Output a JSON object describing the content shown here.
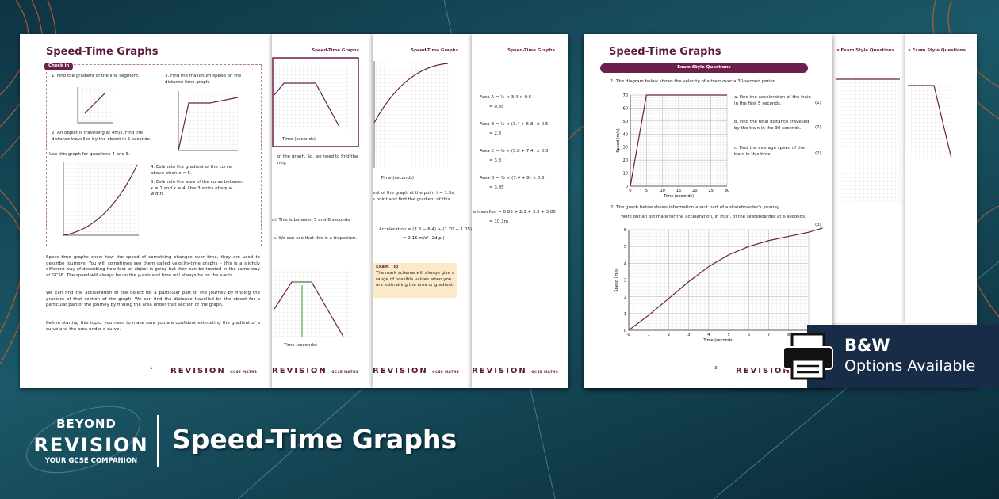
{
  "banner": {
    "title": "Speed-Time Graphs",
    "logo": {
      "top": "BEYOND",
      "main": "REVISION",
      "tagline": "YOUR GCSE COMPANION"
    },
    "badge": {
      "title": "B&W",
      "subtitle": "Options Available"
    }
  },
  "left_spread": {
    "title": "Speed-Time Graphs",
    "check_in": "Check in",
    "questions": [
      "1.  Find the gradient of the line segment.",
      "2.  An object is travelling at 4m/s. Find the distance travelled by the object in 5 seconds.",
      "3.  Find the maximum speed on the distance time graph.",
      "Use this graph for questions 4 and 5.",
      "4.  Estimate the gradient of the curve above when x = 5.",
      "5.  Estimate the area of the curve between x = 1 and x = 4. Use 3 strips of equal width."
    ],
    "paragraphs": [
      "Speed-time graphs show how the speed of something changes over time, they are used to describe journeys. You will sometimes see them called velocity-time graphs – this is a slightly different way of describing how fast an object is going but they can be treated in the same way at GCSE. The speed will always be on the y-axis and time will always be on the x-axis.",
      "We can find the acceleration of the object for a particular part of the journey by finding the gradient of that section of the graph. We can find the distance travelled by the object for a particular part of the journey by finding the area under that section of the graph.",
      "Before starting this topic, you need to make sure you are confident estimating the gradient of a curve and the area under a curve."
    ],
    "page_number": "1",
    "brand": "REVISION",
    "brand_sub": "GCSE MATHS",
    "axis_label": "Time (seconds)",
    "page2_lines": [
      "of the graph. So, we need to find the",
      "ney.",
      "ol. This is between 5 and 8 seconds.",
      "s. We can see that this is a trapezium."
    ],
    "page3_lines": [
      "ent of the graph at the point t = 1.5s.",
      "s point and find the gradient of this",
      "Acceleration = (7.8 − 6.4) ÷ (1.70 − 1.05)",
      "= 2.15 m/s² (2d.p.)"
    ],
    "exam_tip": {
      "title": "Exam Tip",
      "text": "The mark scheme will always give a range of possible values when you are estimating the area or gradient."
    },
    "page4_lines": [
      "Area A = ½ × 3.4 × 0.5",
      "= 0.85",
      "Area B = ½ × (3.4 + 5.8) × 0.5",
      "= 2.3",
      "Area C = ½ × (5.8 + 7.4) × 0.5",
      "= 3.3",
      "Area D = ½ × (7.4 + 8) × 0.5",
      "= 3.85",
      "e travelled = 0.85 + 2.3 + 3.3 + 3.85",
      "= 10.3m"
    ]
  },
  "right_spread": {
    "title": "Speed-Time Graphs",
    "section": "Exam Style Questions",
    "back_header": "s Exam Style Questions",
    "q1": "1.  The diagram below shows the velocity of a train over a 30-second period.",
    "parts": [
      {
        "text": "a.  Find the acceleration of the train in the first 5 seconds.",
        "marks": "(1)"
      },
      {
        "text": "b.  Find the total distance travelled by the train in the 30 seconds.",
        "marks": "(2)"
      },
      {
        "text": "c.  Find the average speed of the train in this time.",
        "marks": "(2)"
      }
    ],
    "q2": "2.  The graph below shows information about part of a skateboarder's journey.",
    "q2_task": "Work out an estimate for the acceleration, in m/s², of the skateboarder at 6 seconds.",
    "q2_marks": "(3)",
    "page_number": "3",
    "brand": "REVISION",
    "graph1": {
      "x_label": "Time (seconds)",
      "y_label": "Speed (m/s)",
      "xticks": [
        0,
        5,
        10,
        15,
        20,
        25,
        30
      ],
      "yticks": [
        0,
        10,
        20,
        30,
        40,
        50,
        60,
        70
      ],
      "x": [
        0,
        5,
        30
      ],
      "y": [
        0,
        70,
        70
      ]
    },
    "graph2": {
      "x_label": "Time (seconds)",
      "y_label": "Speed (m/s)",
      "xticks": [
        0,
        1,
        2,
        3,
        4,
        5,
        6,
        7,
        8,
        9
      ],
      "yticks": [
        0,
        1,
        2,
        3,
        4,
        5,
        6
      ],
      "x": [
        0,
        1,
        2,
        3,
        4,
        5,
        6,
        7,
        8,
        9,
        9.7
      ],
      "y": [
        0,
        0.9,
        1.9,
        2.9,
        3.8,
        4.5,
        5.0,
        5.35,
        5.6,
        5.85,
        6.1
      ]
    }
  }
}
